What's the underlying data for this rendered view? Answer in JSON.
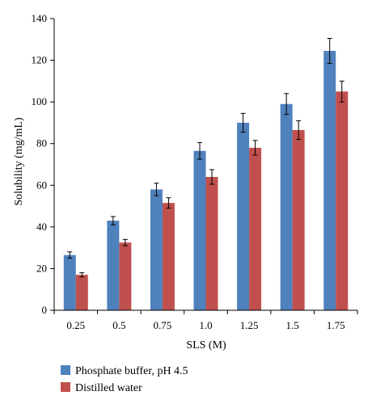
{
  "chart_data": {
    "type": "bar",
    "xlabel": "SLS (M)",
    "ylabel": "Solubility (mg/mL)",
    "categories": [
      "0.25",
      "0.5",
      "0.75",
      "1.0",
      "1.25",
      "1.5",
      "1.75"
    ],
    "ylim": [
      0,
      140
    ],
    "yticks": [
      "0",
      "20",
      "40",
      "60",
      "80",
      "100",
      "120",
      "140"
    ],
    "grid": false,
    "legend_position": "bottom-left",
    "series": [
      {
        "name": "Phosphate buffer, pH 4.5",
        "color": "#4f81bd",
        "values": [
          26.5,
          43,
          58,
          76.5,
          90,
          99,
          124.5
        ],
        "errors": [
          1.5,
          2,
          3,
          4,
          4.5,
          5,
          6
        ]
      },
      {
        "name": "Distilled water",
        "color": "#c0504d",
        "values": [
          17,
          32.5,
          51.5,
          64,
          78,
          86.5,
          105
        ],
        "errors": [
          1,
          1.5,
          2.5,
          3.5,
          3.5,
          4.5,
          5
        ]
      }
    ]
  }
}
